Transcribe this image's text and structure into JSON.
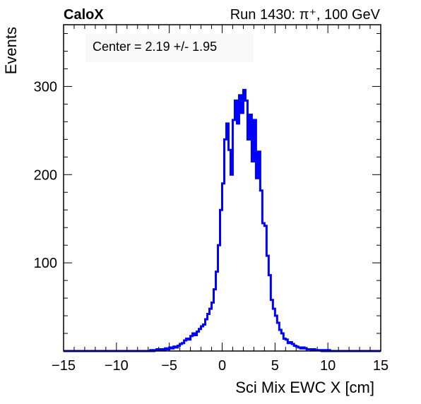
{
  "header": {
    "experiment": "CaloX",
    "run_info": "Run 1430:   π⁺, 100 GeV"
  },
  "annotation": "Center = 2.19 +/- 1.95",
  "colors": {
    "line": "#0000ff",
    "axis": "#000000",
    "annotation_bg": "#f8f8f8"
  },
  "chart_data": {
    "type": "histogram",
    "xlabel": "Sci Mix EWC X [cm]",
    "ylabel": "Events",
    "xlim": [
      -15,
      15
    ],
    "ylim": [
      0,
      370
    ],
    "x_ticks": [
      -15,
      -10,
      -5,
      0,
      5,
      10,
      15
    ],
    "x_tick_labels": [
      "−15",
      "−10",
      "−5",
      "0",
      "5",
      "10",
      "15"
    ],
    "y_ticks": [
      100,
      200,
      300
    ],
    "y_tick_labels": [
      "100",
      "200",
      "300"
    ],
    "grid": false,
    "bin_width": 0.2,
    "bins_x": [
      -7.0,
      -6.8,
      -6.6,
      -6.4,
      -6.2,
      -6.0,
      -5.8,
      -5.6,
      -5.4,
      -5.2,
      -5.0,
      -4.8,
      -4.6,
      -4.4,
      -4.2,
      -4.0,
      -3.8,
      -3.6,
      -3.4,
      -3.2,
      -3.0,
      -2.8,
      -2.6,
      -2.4,
      -2.2,
      -2.0,
      -1.8,
      -1.6,
      -1.4,
      -1.2,
      -1.0,
      -0.8,
      -0.6,
      -0.4,
      -0.2,
      0.0,
      0.2,
      0.4,
      0.6,
      0.8,
      1.0,
      1.2,
      1.4,
      1.6,
      1.8,
      2.0,
      2.2,
      2.4,
      2.6,
      2.8,
      3.0,
      3.2,
      3.4,
      3.6,
      3.8,
      4.0,
      4.2,
      4.4,
      4.6,
      4.8,
      5.0,
      5.2,
      5.4,
      5.6,
      5.8,
      6.0,
      6.2,
      6.4,
      6.6,
      6.8,
      7.0,
      7.2,
      7.4,
      7.6,
      7.8,
      8.0,
      8.2,
      8.4,
      8.6,
      8.8,
      9.0,
      9.2,
      9.4,
      9.6,
      9.8,
      10.0,
      10.2,
      10.4,
      10.6
    ],
    "counts": [
      0,
      1,
      0,
      1,
      2,
      1,
      2,
      1,
      3,
      2,
      4,
      3,
      5,
      4,
      6,
      8,
      9,
      12,
      14,
      13,
      17,
      20,
      18,
      22,
      25,
      28,
      30,
      36,
      42,
      48,
      55,
      70,
      90,
      120,
      160,
      190,
      240,
      258,
      228,
      200,
      262,
      284,
      258,
      290,
      270,
      296,
      284,
      240,
      268,
      215,
      262,
      196,
      226,
      182,
      145,
      142,
      108,
      86,
      58,
      48,
      40,
      32,
      24,
      20,
      14,
      13,
      9,
      10,
      8,
      6,
      5,
      4,
      3,
      4,
      3,
      2,
      2,
      1,
      2,
      1,
      1,
      1,
      0,
      1,
      0,
      1,
      0,
      0,
      0
    ]
  }
}
